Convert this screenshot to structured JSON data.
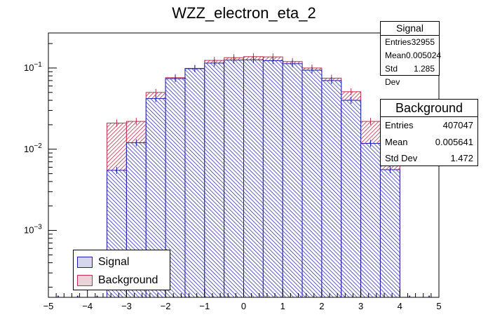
{
  "chart_data": {
    "type": "histogram",
    "title": "WZZ_electron_eta_2",
    "xlabel": "",
    "ylabel": "",
    "xlim": [
      -5,
      5
    ],
    "ylim": [
      0.00015,
      0.27
    ],
    "log_y": true,
    "grid": false,
    "x_ticks": [
      "−5",
      "−4",
      "−3",
      "−2",
      "−1",
      "0",
      "1",
      "2",
      "3",
      "4",
      "5"
    ],
    "y_ticks": [
      {
        "value": 0.001,
        "base": "10",
        "exp": "−3"
      },
      {
        "value": 0.01,
        "base": "10",
        "exp": "−2"
      },
      {
        "value": 0.1,
        "base": "10",
        "exp": "−1"
      }
    ],
    "bin_edges": [
      -5,
      -4.5,
      -4,
      -3.5,
      -3,
      -2.5,
      -2,
      -1.5,
      -1,
      -0.5,
      0,
      0.5,
      1,
      1.5,
      2,
      2.5,
      3,
      3.5,
      4,
      4.5,
      5
    ],
    "series": [
      {
        "name": "Background",
        "color": "#c0304a",
        "values": [
          0,
          0,
          0,
          0.021,
          0.022,
          0.05,
          0.076,
          0.099,
          0.124,
          0.134,
          0.138,
          0.137,
          0.12,
          0.1,
          0.075,
          0.051,
          0.022,
          0.022,
          0,
          0
        ]
      },
      {
        "name": "Signal",
        "color": "#1c1cb0",
        "values": [
          0,
          0,
          0,
          0.0055,
          0.012,
          0.042,
          0.074,
          0.098,
          0.115,
          0.125,
          0.126,
          0.123,
          0.113,
          0.094,
          0.07,
          0.04,
          0.0118,
          0.0056,
          0,
          0
        ]
      }
    ],
    "legend_position": "bottom-left"
  },
  "stats": {
    "signal": {
      "title": "Signal",
      "rows": [
        {
          "label": "Entries",
          "value": "32955"
        },
        {
          "label": "Mean",
          "value": "0.005024"
        },
        {
          "label": "Std Dev",
          "value": "1.285"
        }
      ]
    },
    "background": {
      "title": "Background",
      "rows": [
        {
          "label": "Entries",
          "value": "407047"
        },
        {
          "label": "Mean",
          "value": "0.005641"
        },
        {
          "label": "Std Dev",
          "value": "1.472"
        }
      ]
    }
  },
  "legend": {
    "signal_label": "Signal",
    "background_label": "Background",
    "signal_fill": "#d6d6ec",
    "background_fill": "#ecd3d7"
  }
}
